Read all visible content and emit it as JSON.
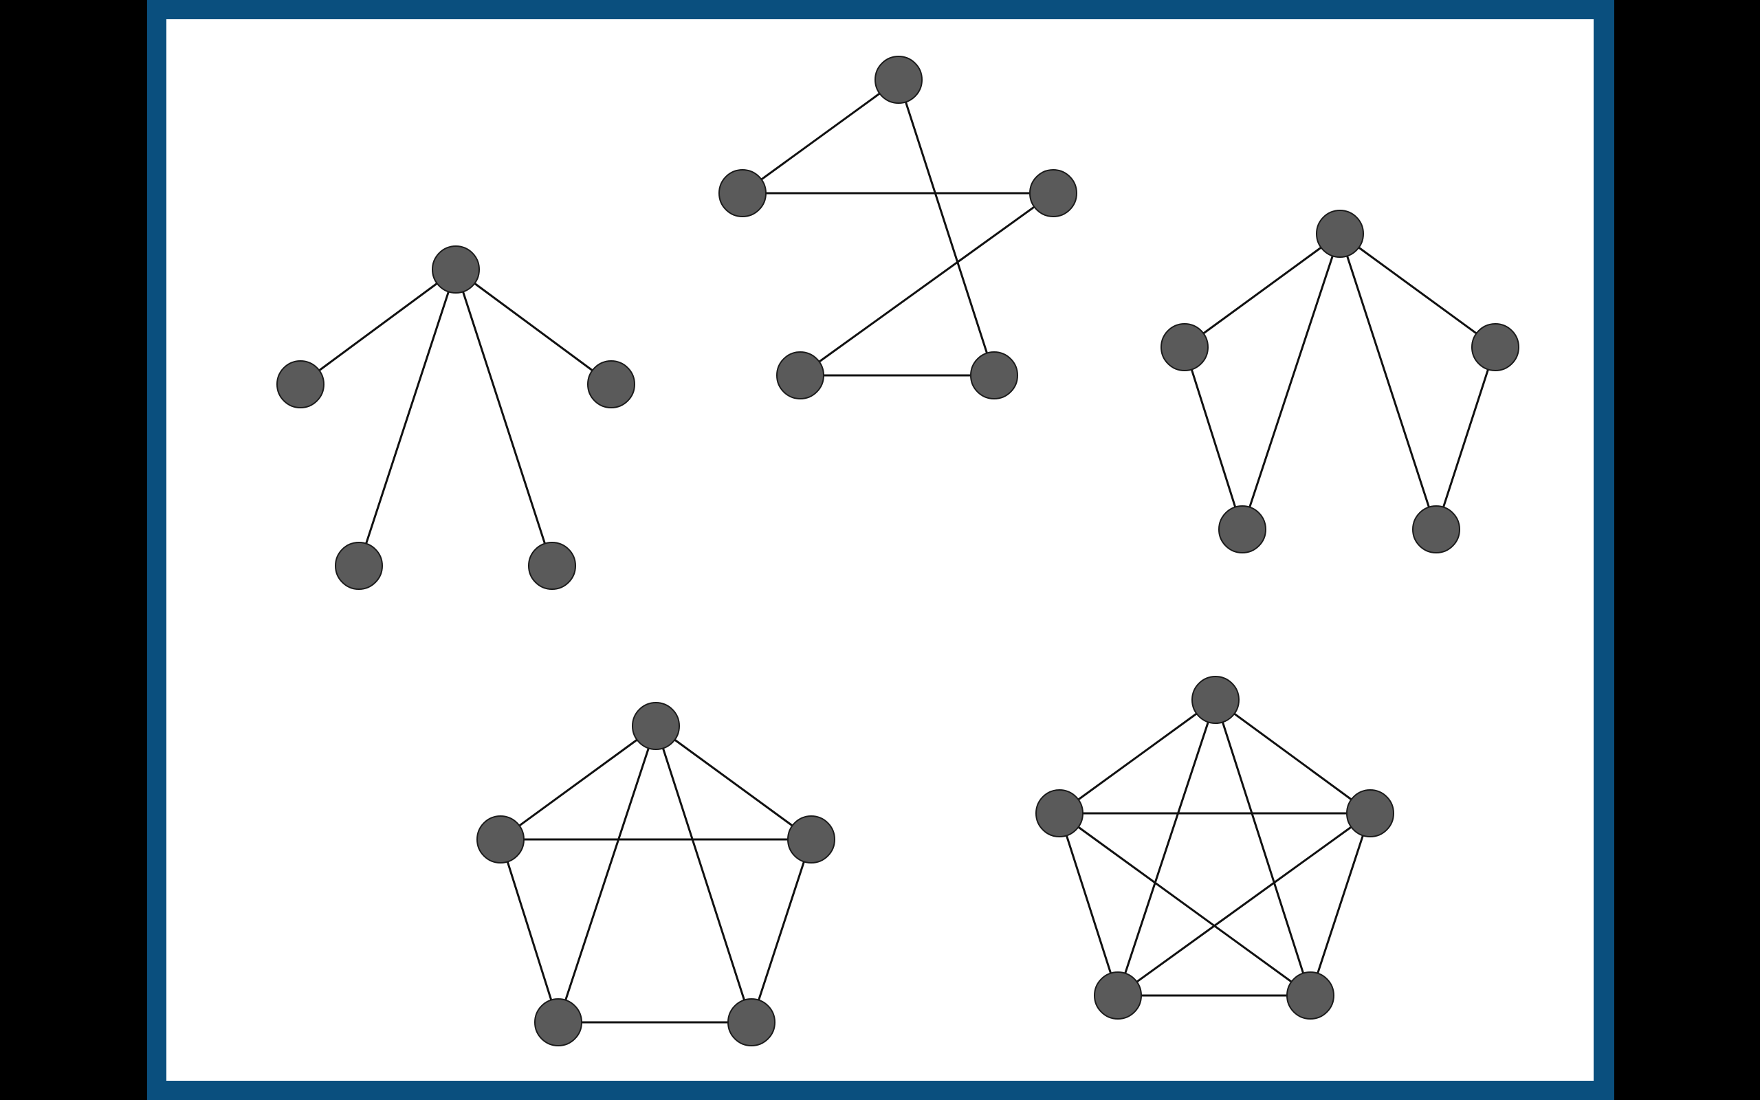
{
  "colors": {
    "background": "#000000",
    "frame": "#0a4f7e",
    "canvas": "#ffffff",
    "node_fill": "#5a5a5a",
    "node_stroke": "#1a1a1a",
    "edge": "#111111"
  },
  "graphs": [
    {
      "name": "star-graph",
      "description_kind": "star",
      "node_count": 5,
      "hub": 0,
      "edges": [
        [
          0,
          1
        ],
        [
          0,
          2
        ],
        [
          0,
          3
        ],
        [
          0,
          4
        ]
      ]
    },
    {
      "name": "cycle-graph",
      "description_kind": "cycle",
      "node_count": 5,
      "edges": [
        [
          0,
          1
        ],
        [
          1,
          2
        ],
        [
          2,
          3
        ],
        [
          3,
          4
        ],
        [
          4,
          0
        ]
      ]
    },
    {
      "name": "fan-graph",
      "description_kind": "fan",
      "node_count": 5,
      "edges": [
        [
          0,
          1
        ],
        [
          0,
          2
        ],
        [
          0,
          3
        ],
        [
          0,
          4
        ],
        [
          1,
          3
        ],
        [
          2,
          4
        ]
      ]
    },
    {
      "name": "wheel-like-graph",
      "description_kind": "k5-minus-edges",
      "node_count": 5,
      "edges": [
        [
          0,
          1
        ],
        [
          0,
          2
        ],
        [
          0,
          3
        ],
        [
          0,
          4
        ],
        [
          1,
          2
        ],
        [
          1,
          3
        ],
        [
          2,
          4
        ],
        [
          3,
          4
        ]
      ]
    },
    {
      "name": "complete-graph",
      "description_kind": "complete",
      "node_count": 5,
      "edges": [
        [
          0,
          1
        ],
        [
          0,
          2
        ],
        [
          0,
          3
        ],
        [
          0,
          4
        ],
        [
          1,
          2
        ],
        [
          1,
          3
        ],
        [
          1,
          4
        ],
        [
          2,
          3
        ],
        [
          2,
          4
        ],
        [
          3,
          4
        ]
      ]
    }
  ]
}
